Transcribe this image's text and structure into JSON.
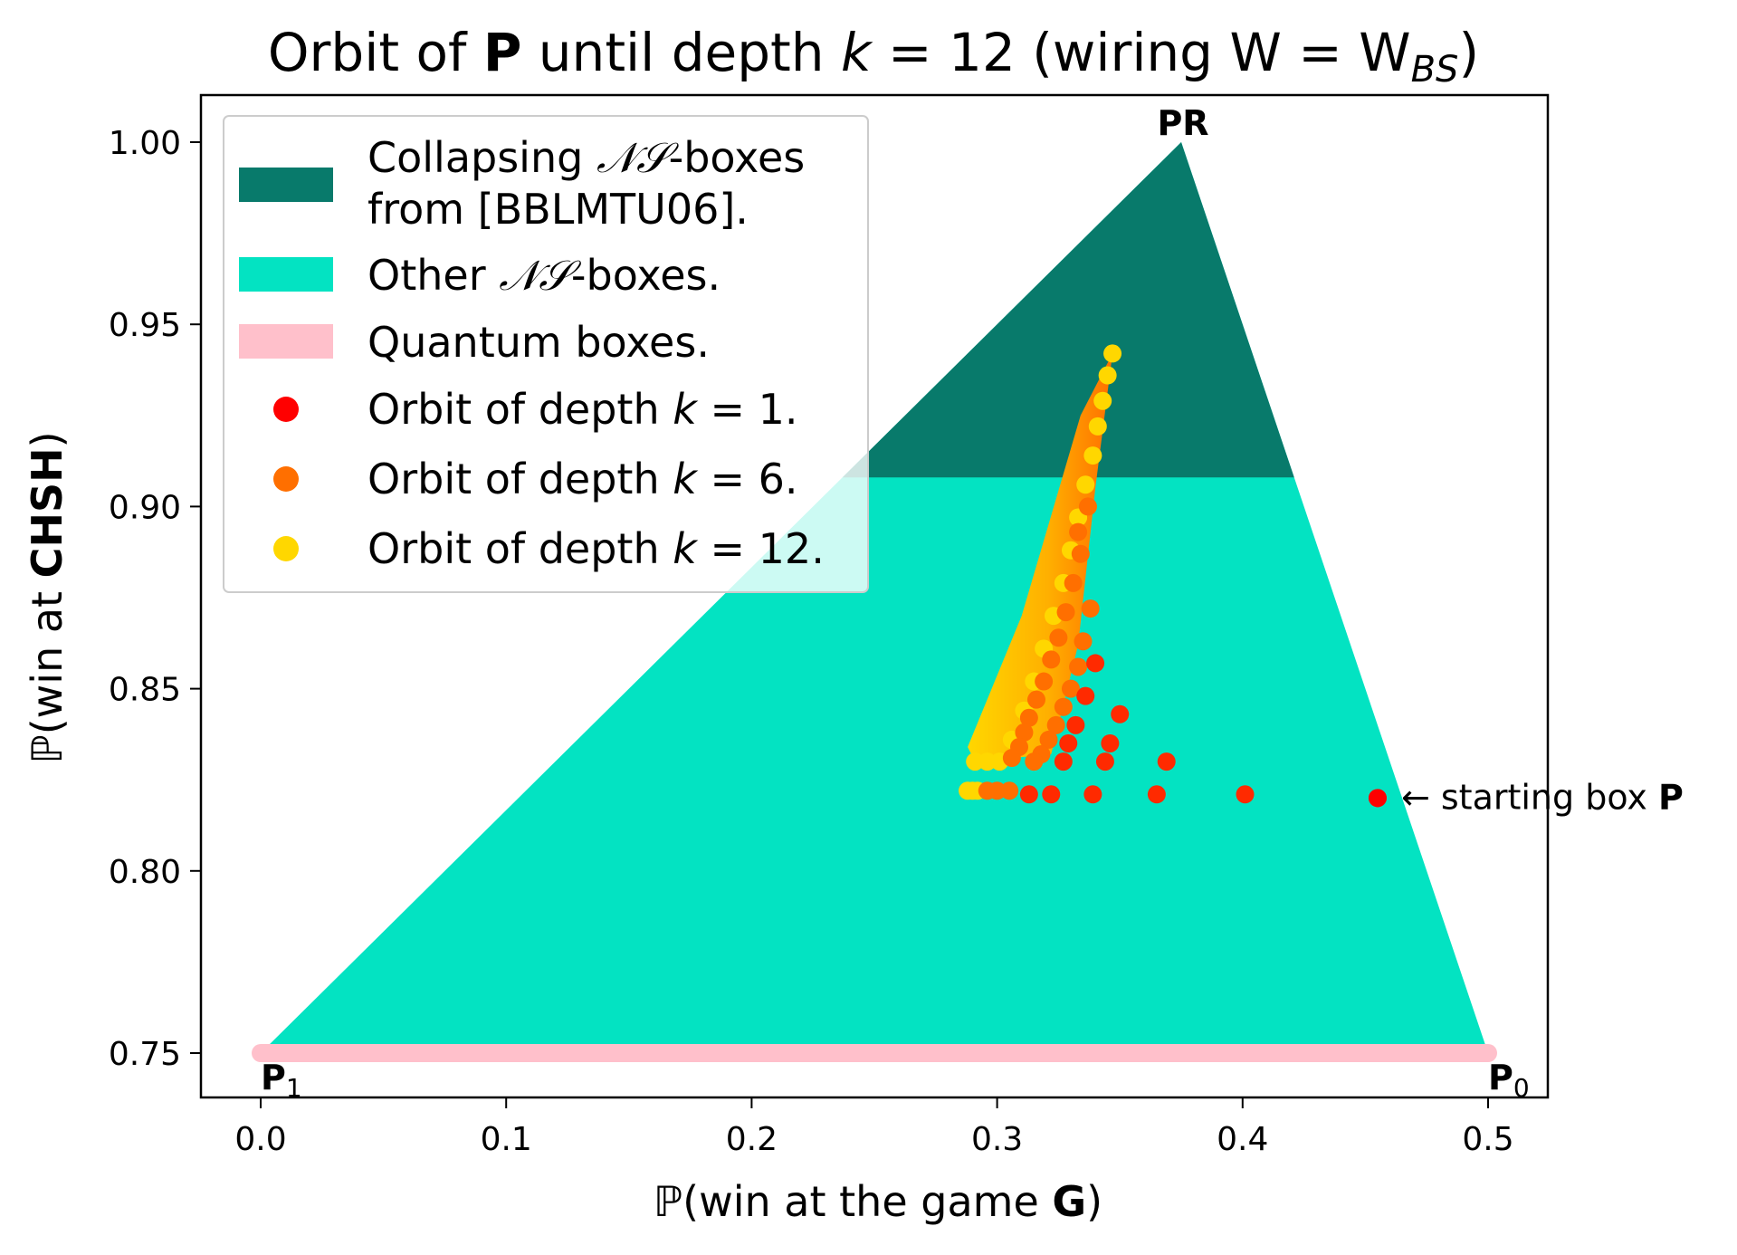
{
  "chart_data": {
    "type": "scatter",
    "title": {
      "pre": "Orbit of ",
      "bold": "P",
      "mid": " until depth ",
      "var": "k",
      "eq": " = 12 (wiring W = W",
      "sub": "BS",
      "post": ")"
    },
    "xlabel": {
      "pre": "ℙ(win at the game ",
      "bold": "G",
      "post": ")"
    },
    "ylabel": {
      "pre": "ℙ(win at ",
      "bold": "CHSH",
      "post": ")"
    },
    "xlim": [
      -0.025,
      0.525
    ],
    "ylim": [
      0.737,
      1.012
    ],
    "xticks": [
      "0.0",
      "0.1",
      "0.2",
      "0.3",
      "0.4",
      "0.5"
    ],
    "yticks": [
      "0.75",
      "0.80",
      "0.85",
      "0.90",
      "0.95",
      "1.00"
    ],
    "grid": false,
    "legend_position": "upper-left",
    "colors": {
      "collapsing": "#087a6b",
      "other_ns": "#03e3c2",
      "quantum": "#ffc0cb",
      "depth1": "#ff0000",
      "depth6": "#ff6f00",
      "depth12": "#ffd700"
    },
    "regions": {
      "ns_triangle": [
        [
          0.0,
          0.75
        ],
        [
          0.375,
          1.0
        ],
        [
          0.5,
          0.75
        ]
      ],
      "collapsing_threshold_y": 0.908,
      "quantum_segment": [
        [
          0.0,
          0.75
        ],
        [
          0.5,
          0.75
        ]
      ]
    },
    "vertices": [
      {
        "label": "PR",
        "x": 0.375,
        "y": 1.0
      },
      {
        "label": "P",
        "sub": "1",
        "x": 0.0,
        "y": 0.75
      },
      {
        "label": "P",
        "sub": "0",
        "x": 0.5,
        "y": 0.75
      }
    ],
    "annotation": {
      "text": "← starting box ",
      "bold": "P",
      "x": 0.455,
      "y": 0.82
    },
    "series": [
      {
        "name": "Orbit of depth k = 1.",
        "points": [
          [
            0.455,
            0.82
          ],
          [
            0.401,
            0.821
          ],
          [
            0.365,
            0.821
          ],
          [
            0.339,
            0.821
          ],
          [
            0.322,
            0.821
          ],
          [
            0.313,
            0.821
          ],
          [
            0.369,
            0.83
          ],
          [
            0.35,
            0.843
          ],
          [
            0.346,
            0.835
          ],
          [
            0.344,
            0.83
          ],
          [
            0.34,
            0.857
          ],
          [
            0.336,
            0.848
          ],
          [
            0.332,
            0.84
          ],
          [
            0.329,
            0.835
          ],
          [
            0.327,
            0.83
          ]
        ]
      },
      {
        "name": "Orbit of depth k = 6.",
        "points": [
          [
            0.305,
            0.822
          ],
          [
            0.3,
            0.822
          ],
          [
            0.296,
            0.822
          ],
          [
            0.338,
            0.872
          ],
          [
            0.335,
            0.863
          ],
          [
            0.333,
            0.856
          ],
          [
            0.33,
            0.85
          ],
          [
            0.327,
            0.845
          ],
          [
            0.324,
            0.84
          ],
          [
            0.321,
            0.836
          ],
          [
            0.318,
            0.832
          ],
          [
            0.315,
            0.83
          ],
          [
            0.334,
            0.887
          ],
          [
            0.331,
            0.879
          ],
          [
            0.328,
            0.871
          ],
          [
            0.325,
            0.864
          ],
          [
            0.322,
            0.858
          ],
          [
            0.319,
            0.852
          ],
          [
            0.316,
            0.847
          ],
          [
            0.313,
            0.842
          ],
          [
            0.311,
            0.838
          ],
          [
            0.309,
            0.834
          ],
          [
            0.306,
            0.831
          ],
          [
            0.337,
            0.9
          ],
          [
            0.333,
            0.893
          ]
        ]
      },
      {
        "name": "Orbit of depth k = 12.",
        "points": [
          [
            0.347,
            0.942
          ],
          [
            0.345,
            0.936
          ],
          [
            0.343,
            0.929
          ],
          [
            0.341,
            0.922
          ],
          [
            0.339,
            0.914
          ],
          [
            0.336,
            0.906
          ],
          [
            0.333,
            0.897
          ],
          [
            0.33,
            0.888
          ],
          [
            0.327,
            0.879
          ],
          [
            0.323,
            0.87
          ],
          [
            0.319,
            0.861
          ],
          [
            0.315,
            0.852
          ],
          [
            0.311,
            0.844
          ],
          [
            0.306,
            0.836
          ],
          [
            0.301,
            0.83
          ],
          [
            0.296,
            0.83
          ],
          [
            0.291,
            0.83
          ],
          [
            0.29,
            0.822
          ],
          [
            0.288,
            0.822
          ],
          [
            0.292,
            0.822
          ]
        ]
      }
    ]
  }
}
